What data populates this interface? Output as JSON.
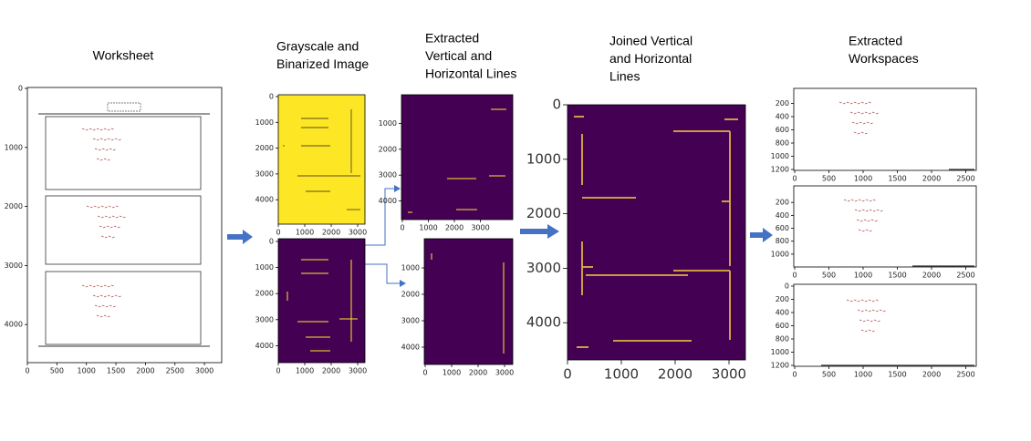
{
  "stages": [
    {
      "title_lines": [
        "Worksheet"
      ],
      "panels": [
        {
          "xticks": [
            0,
            500,
            1000,
            1500,
            2000,
            2500,
            3000
          ],
          "yticks": [
            0,
            1000,
            2000,
            3000,
            4000
          ]
        }
      ]
    },
    {
      "title_lines": [
        "Grayscale and",
        "Binarized Image"
      ],
      "panels": [
        {
          "xticks": [
            0,
            1000,
            2000,
            3000
          ],
          "yticks": [
            0,
            1000,
            2000,
            3000,
            4000
          ]
        },
        {
          "xticks": [
            0,
            1000,
            2000,
            3000
          ],
          "yticks": [
            0,
            1000,
            2000,
            3000,
            4000
          ]
        }
      ]
    },
    {
      "title_lines": [
        "Extracted",
        "Vertical and",
        "Horizontal Lines"
      ],
      "panels": [
        {
          "xticks": [
            0,
            1000,
            2000,
            3000
          ],
          "yticks": [
            1000,
            2000,
            3000,
            4000
          ]
        },
        {
          "xticks": [
            0,
            1000,
            2000,
            3000
          ],
          "yticks": [
            1000,
            2000,
            3000,
            4000
          ]
        }
      ]
    },
    {
      "title_lines": [
        "Joined Vertical",
        "and Horizontal",
        "Lines"
      ],
      "panels": [
        {
          "xticks": [
            0,
            1000,
            2000,
            3000
          ],
          "yticks": [
            0,
            1000,
            2000,
            3000,
            4000
          ]
        }
      ]
    },
    {
      "title_lines": [
        "Extracted",
        "Workspaces"
      ],
      "panels": [
        {
          "xticks": [
            0,
            500,
            1000,
            1500,
            2000,
            2500
          ],
          "yticks": [
            200,
            400,
            600,
            800,
            1000,
            1200
          ]
        },
        {
          "xticks": [
            0,
            500,
            1000,
            1500,
            2000,
            2500
          ],
          "yticks": [
            200,
            400,
            600,
            800,
            1000
          ]
        },
        {
          "xticks": [
            0,
            500,
            1000,
            1500,
            2000,
            2500
          ],
          "yticks": [
            0,
            200,
            400,
            600,
            800,
            1000,
            1200
          ]
        }
      ]
    }
  ]
}
